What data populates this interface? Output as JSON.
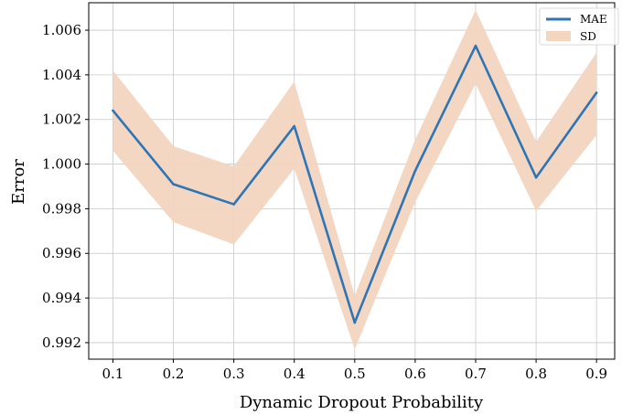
{
  "chart_data": {
    "type": "line",
    "xlabel": "Dynamic Dropout Probability",
    "ylabel": "Error",
    "x": [
      0.1,
      0.2,
      0.3,
      0.4,
      0.5,
      0.6,
      0.7,
      0.8,
      0.9
    ],
    "xticks": [
      "0.1",
      "0.2",
      "0.3",
      "0.4",
      "0.5",
      "0.6",
      "0.7",
      "0.8",
      "0.9"
    ],
    "yticks": [
      "0.992",
      "0.994",
      "0.996",
      "0.998",
      "1.000",
      "1.002",
      "1.004",
      "1.006"
    ],
    "ytick_values": [
      0.992,
      0.994,
      0.996,
      0.998,
      1.0,
      1.002,
      1.004,
      1.006
    ],
    "xlim": [
      0.06,
      0.93
    ],
    "ylim": [
      0.99126,
      1.00723
    ],
    "grid": true,
    "legend_position": "top-right",
    "series": [
      {
        "name": "MAE",
        "kind": "line",
        "color": "#2e75b6",
        "values": [
          1.0024,
          0.9991,
          0.9982,
          1.0017,
          0.9929,
          0.9997,
          1.0053,
          0.9994,
          1.0032
        ]
      },
      {
        "name": "SD",
        "kind": "band",
        "color": "#f3d5c0",
        "lower": [
          1.0006,
          0.9974,
          0.9964,
          0.9998,
          0.9917,
          0.9983,
          1.0036,
          0.9979,
          1.0013
        ],
        "upper": [
          1.0042,
          1.0008,
          0.9999,
          1.0037,
          0.9941,
          1.0011,
          1.0069,
          1.001,
          1.005
        ]
      }
    ]
  }
}
